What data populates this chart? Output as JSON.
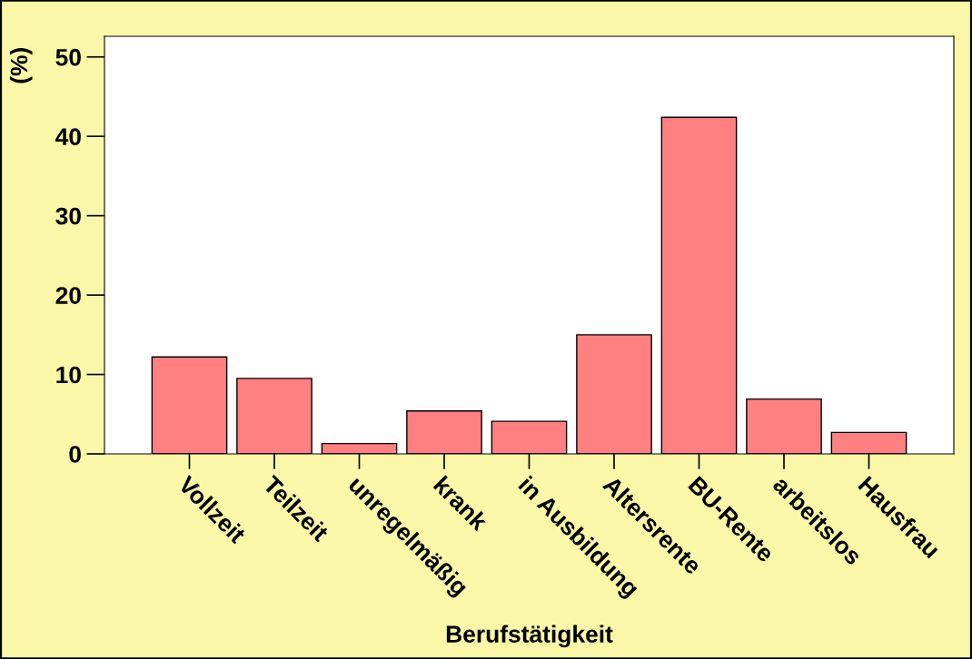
{
  "chart_data": {
    "type": "bar",
    "xlabel": "Berufstätigkeit",
    "ylabel": "(%)",
    "categories": [
      "Vollzeit",
      "Teilzeit",
      "unregelmäßig",
      "krank",
      "in Ausbildung",
      "Altersrente",
      "BU-Rente",
      "arbeitslos",
      "Hausfrau"
    ],
    "values": [
      12.2,
      9.5,
      1.3,
      5.4,
      4.1,
      15.0,
      42.4,
      6.9,
      2.7
    ],
    "color": "#ff8080",
    "ylim": [
      0,
      52.6
    ],
    "yticks": [
      0,
      10,
      20,
      30,
      40,
      50
    ],
    "grid": false,
    "legend": false
  }
}
